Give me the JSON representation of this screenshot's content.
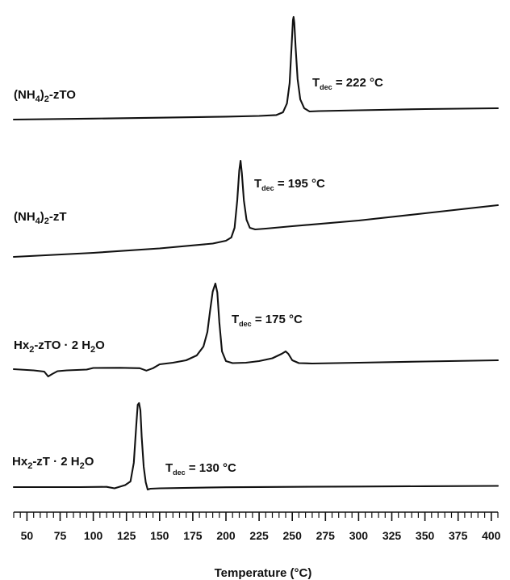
{
  "chart_data": {
    "type": "line",
    "xlabel": "Temperature (°C)",
    "ylabel": "",
    "xlim": [
      40,
      405
    ],
    "xticks": [
      50,
      75,
      100,
      125,
      150,
      175,
      200,
      225,
      250,
      275,
      300,
      325,
      350,
      375,
      400
    ],
    "xtick_labels": [
      "50",
      "75",
      "100",
      "125",
      "150",
      "175",
      "200",
      "225",
      "250",
      "275",
      "300",
      "325",
      "350",
      "375",
      "400"
    ],
    "y_axis_shown": false,
    "grid": false,
    "series": [
      {
        "name": "(NH4)2-zTO",
        "label_parts": {
          "base1": "(NH",
          "sub1": "4",
          "base2": ")",
          "sub2": "2",
          "base3": "-zTO"
        },
        "annotation": {
          "prefix": "T",
          "sub": "dec",
          "text": " = 222 °C"
        },
        "peak_x": 251,
        "x": [
          40,
          100,
          150,
          200,
          225,
          238,
          243,
          246,
          248,
          249.5,
          250.5,
          251,
          251.5,
          252.5,
          254,
          256,
          259,
          263,
          270,
          300,
          350,
          405
        ],
        "y": [
          0,
          1.2,
          2.3,
          3.6,
          4.5,
          5.6,
          9,
          20,
          45,
          92,
          123,
          127,
          120,
          90,
          50,
          25,
          14,
          10,
          10.5,
          11.5,
          13,
          14
        ]
      },
      {
        "name": "(NH4)2-zT",
        "label_parts": {
          "base1": "(NH",
          "sub1": "4",
          "base2": ")",
          "sub2": "2",
          "base3": "-zT"
        },
        "annotation": {
          "prefix": "T",
          "sub": "dec",
          "text": " = 195 °C"
        },
        "peak_x": 211,
        "x": [
          40,
          100,
          150,
          190,
          200,
          204,
          206.5,
          208.5,
          210,
          211,
          212,
          213.5,
          215.5,
          218,
          222,
          230,
          250,
          300,
          350,
          405
        ],
        "y": [
          0,
          5,
          10.5,
          16.5,
          20,
          24,
          36,
          70,
          107,
          119,
          104,
          70,
          46,
          36,
          34,
          35,
          38,
          45,
          54,
          64
        ]
      },
      {
        "name": "Hx2-zTO · 2 H2O",
        "label_parts": {
          "base1": "Hx",
          "sub1": "2",
          "base2": "-zTO · 2 H",
          "sub2": "2",
          "base3": "O"
        },
        "annotation": {
          "prefix": "T",
          "sub": "dec",
          "text": " = 175 °C"
        },
        "peak_x": 192,
        "x": [
          40,
          55,
          63,
          66,
          69,
          73,
          80,
          95,
          100,
          120,
          135,
          140,
          145,
          150,
          160,
          170,
          178,
          183,
          186,
          188,
          190,
          192,
          193.5,
          195,
          197,
          200,
          205,
          215,
          225,
          235,
          242,
          245,
          247,
          250,
          255,
          265,
          300,
          350,
          405
        ],
        "y": [
          0,
          -1.5,
          -3,
          -9,
          -6,
          -2.5,
          -1.5,
          -0.5,
          1.5,
          1.7,
          1.2,
          -1.8,
          1.2,
          6,
          8,
          11,
          17,
          28,
          46,
          72,
          96,
          106,
          95,
          58,
          22,
          10,
          7.5,
          8,
          10,
          13.5,
          19,
          22,
          19,
          11,
          7.5,
          7,
          8,
          9.5,
          11
        ]
      },
      {
        "name": "Hx2-zT · 2 H2O",
        "label_parts": {
          "base1": "Hx",
          "sub1": "2",
          "base2": "-zT · 2 H",
          "sub2": "2",
          "base3": "O"
        },
        "annotation": {
          "prefix": "T",
          "sub": "dec",
          "text": " = 130 °C"
        },
        "peak_x": 135,
        "x": [
          40,
          90,
          110,
          116,
          120,
          124,
          128,
          130.5,
          132.5,
          133.5,
          134.5,
          135.5,
          136.5,
          138,
          139.5,
          141,
          143,
          150,
          200,
          250,
          300,
          350,
          405
        ],
        "y": [
          0,
          0,
          0.3,
          -1.5,
          0.5,
          2.5,
          7,
          30,
          80,
          102,
          104,
          95,
          62,
          25,
          6,
          -3,
          -2,
          -1.5,
          -0.2,
          0.3,
          0.7,
          1.1,
          1.5
        ]
      }
    ]
  }
}
